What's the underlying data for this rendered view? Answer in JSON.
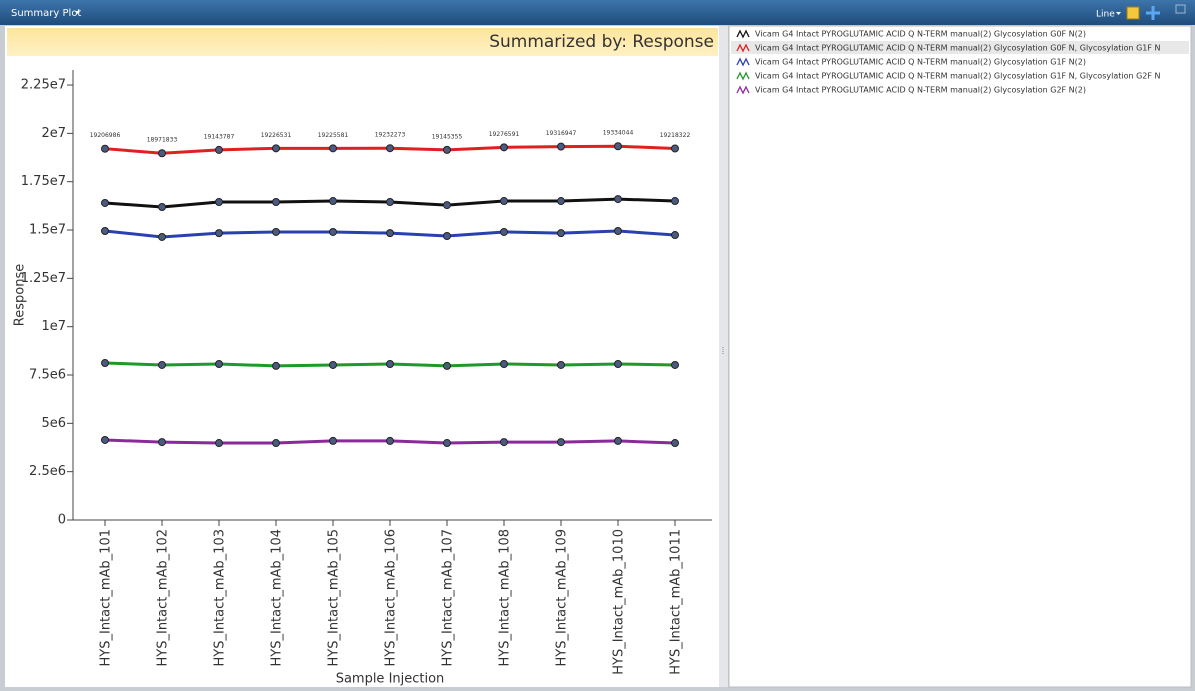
{
  "ui": {
    "toolbar_title": "Summary Plot",
    "plot_mode": "Line"
  },
  "chart_data": {
    "type": "line",
    "title": "Summarized by: Response",
    "x_label": "Sample Injection",
    "y_label": "Response",
    "categories": [
      "HYS_Intact_mAb_101",
      "HYS_Intact_mAb_102",
      "HYS_Intact_mAb_103",
      "HYS_Intact_mAb_104",
      "HYS_Intact_mAb_105",
      "HYS_Intact_mAb_106",
      "HYS_Intact_mAb_107",
      "HYS_Intact_mAb_108",
      "HYS_Intact_mAb_109",
      "HYS_Intact_mAb_1010",
      "HYS_Intact_mAb_1011"
    ],
    "ylim": [
      0,
      23200000
    ],
    "yticks": [
      0,
      {
        "value": 2500000,
        "label": "2.5e6"
      },
      {
        "value": 5000000,
        "label": "5e6"
      },
      {
        "value": 7500000,
        "label": "7.5e6"
      },
      {
        "value": 10000000,
        "label": "1e7"
      },
      {
        "value": 12500000,
        "label": "1.25e7"
      },
      {
        "value": 15000000,
        "label": "1.5e7"
      },
      {
        "value": 17500000,
        "label": "1.75e7"
      },
      {
        "value": 20000000,
        "label": "2e7"
      },
      {
        "value": 22500000,
        "label": "2.25e7"
      }
    ],
    "legend": "right-panel",
    "series": [
      {
        "name": "Vicam G4 Intact PYROGLUTAMIC ACID Q N-TERM manual(2) Glycosylation G0F N(2)",
        "color": "#111111",
        "values": [
          16400000,
          16190000,
          16450000,
          16450000,
          16500000,
          16450000,
          16290000,
          16500000,
          16500000,
          16600000,
          16500000
        ]
      },
      {
        "name": "Vicam G4 Intact PYROGLUTAMIC ACID Q N-TERM manual(2) Glycosylation G0F N, Glycosylation G1F N",
        "color": "#e02020",
        "data_labels": true,
        "values": [
          19206986,
          18971833,
          19143787,
          19226531,
          19225581,
          19232273,
          19145355,
          19276591,
          19316947,
          19334044,
          19218322
        ]
      },
      {
        "name": "Vicam G4 Intact PYROGLUTAMIC ACID Q N-TERM manual(2) Glycosylation G1F N(2)",
        "color": "#2a3fb0",
        "values": [
          14950000,
          14640000,
          14840000,
          14900000,
          14900000,
          14840000,
          14690000,
          14900000,
          14840000,
          14950000,
          14740000
        ]
      },
      {
        "name": "Vicam G4 Intact PYROGLUTAMIC ACID Q N-TERM manual(2) Glycosylation G1F N, Glycosylation G2F N",
        "color": "#1e9a2a",
        "values": [
          8120000,
          8020000,
          8070000,
          7970000,
          8020000,
          8070000,
          7970000,
          8070000,
          8020000,
          8070000,
          8020000
        ]
      },
      {
        "name": "Vicam G4 Intact PYROGLUTAMIC ACID Q N-TERM manual(2) Glycosylation G2F N(2)",
        "color": "#8a2a9a",
        "values": [
          4140000,
          4030000,
          3980000,
          3980000,
          4090000,
          4090000,
          3980000,
          4030000,
          4030000,
          4090000,
          3980000
        ]
      }
    ]
  }
}
